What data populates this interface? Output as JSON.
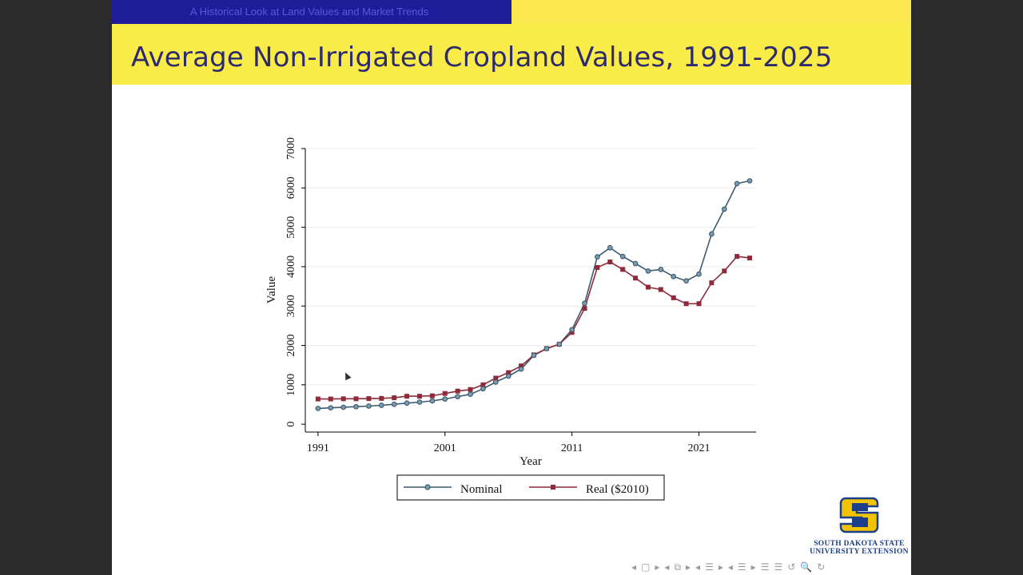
{
  "header": {
    "nav_section": "A Historical Look at Land Values and Market Trends"
  },
  "slide": {
    "title": "Average Non-Irrigated Cropland Values, 1991-2025"
  },
  "logo": {
    "line1": "South Dakota State",
    "line2": "University Extension"
  },
  "chart_data": {
    "type": "line",
    "title": "",
    "xlabel": "Year",
    "ylabel": "Value",
    "xlim": [
      1990,
      2025.5
    ],
    "ylim": [
      -200,
      7000
    ],
    "xticks": [
      1991,
      2001,
      2011,
      2021
    ],
    "yticks": [
      0,
      1000,
      2000,
      3000,
      4000,
      5000,
      6000,
      7000
    ],
    "grid": true,
    "legend_position": "bottom",
    "x": [
      1991,
      1992,
      1993,
      1994,
      1995,
      1996,
      1997,
      1998,
      1999,
      2000,
      2001,
      2002,
      2003,
      2004,
      2005,
      2006,
      2007,
      2008,
      2009,
      2010,
      2011,
      2012,
      2013,
      2014,
      2015,
      2016,
      2017,
      2018,
      2019,
      2020,
      2021,
      2022,
      2023,
      2024,
      2025
    ],
    "series": [
      {
        "name": "Nominal",
        "color": "#3c5a6e",
        "marker": "circle",
        "values": [
          400,
          415,
          430,
          445,
          460,
          480,
          505,
          535,
          560,
          590,
          640,
          700,
          760,
          900,
          1070,
          1220,
          1400,
          1750,
          1920,
          2030,
          2400,
          3070,
          4250,
          4480,
          4260,
          4080,
          3890,
          3930,
          3750,
          3640,
          3810,
          4830,
          5460,
          6110,
          6180
        ]
      },
      {
        "name": "Real ($2010)",
        "color": "#8e2a3a",
        "marker": "square",
        "values": [
          640,
          640,
          645,
          645,
          650,
          655,
          670,
          710,
          710,
          720,
          780,
          840,
          880,
          1000,
          1170,
          1310,
          1480,
          1760,
          1920,
          2030,
          2330,
          2940,
          3980,
          4120,
          3930,
          3710,
          3480,
          3420,
          3210,
          3060,
          3060,
          3590,
          3890,
          4260,
          4220
        ]
      }
    ]
  },
  "nav_icons": [
    "◂",
    "▢",
    "▸",
    "◂",
    "⧉",
    "▸",
    "◂",
    "☰",
    "▸",
    "◂",
    "☰",
    "▸",
    "☰",
    "☰",
    "↺",
    "🔍",
    "↻"
  ]
}
